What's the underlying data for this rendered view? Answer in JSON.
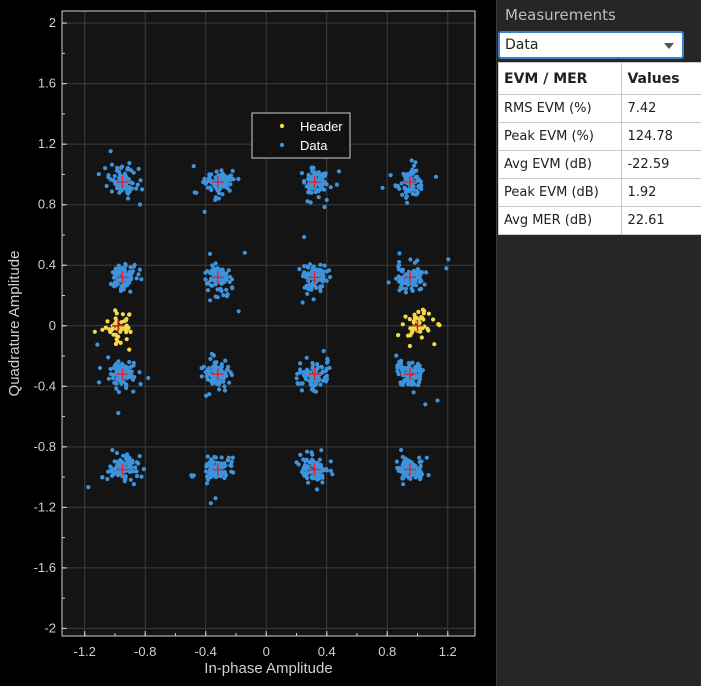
{
  "chart_data": {
    "type": "scatter",
    "title": "",
    "xlabel": "In-phase Amplitude",
    "ylabel": "Quadrature Amplitude",
    "xlim": [
      -1.35,
      1.38
    ],
    "ylim": [
      -2.05,
      2.08
    ],
    "xticks": [
      "-1.2",
      "-0.8",
      "-0.4",
      "0",
      "0.4",
      "0.8",
      "1.2"
    ],
    "xtick_values": [
      -1.2,
      -0.8,
      -0.4,
      0,
      0.4,
      0.8,
      1.2
    ],
    "yticks": [
      "2",
      "1.6",
      "1.2",
      "0.8",
      "0.4",
      "0",
      "-0.4",
      "-0.8",
      "-1.2",
      "-1.6",
      "-2"
    ],
    "ytick_values": [
      2,
      1.6,
      1.2,
      0.8,
      0.4,
      0,
      -0.4,
      -0.8,
      -1.2,
      -1.6,
      -2
    ],
    "grid": true,
    "legend_position": "center-top",
    "series": [
      {
        "name": "Header",
        "color": "#f5d94a",
        "clusters": [
          {
            "x": -0.98,
            "y": 0.0,
            "spread": 0.05
          },
          {
            "x": 1.0,
            "y": 0.0,
            "spread": 0.055
          }
        ],
        "points_per_cluster": 45
      },
      {
        "name": "Data",
        "color": "#3d93dc",
        "clusters": [
          {
            "x": -0.95,
            "y": 0.95
          },
          {
            "x": -0.32,
            "y": 0.95
          },
          {
            "x": 0.32,
            "y": 0.95
          },
          {
            "x": 0.95,
            "y": 0.95
          },
          {
            "x": -0.95,
            "y": 0.32
          },
          {
            "x": -0.32,
            "y": 0.32
          },
          {
            "x": 0.32,
            "y": 0.32
          },
          {
            "x": 0.95,
            "y": 0.32
          },
          {
            "x": -0.95,
            "y": -0.32
          },
          {
            "x": -0.32,
            "y": -0.32
          },
          {
            "x": 0.32,
            "y": -0.32
          },
          {
            "x": 0.95,
            "y": -0.32
          },
          {
            "x": -0.95,
            "y": -0.95
          },
          {
            "x": -0.32,
            "y": -0.95
          },
          {
            "x": 0.32,
            "y": -0.95
          },
          {
            "x": 0.95,
            "y": -0.95
          }
        ],
        "points_per_cluster": 90,
        "spread": 0.045
      }
    ],
    "reference_marker_color": "#e8202a",
    "reference_points": [
      {
        "x": -0.95,
        "y": 0.95
      },
      {
        "x": -0.32,
        "y": 0.95
      },
      {
        "x": 0.32,
        "y": 0.95
      },
      {
        "x": 0.95,
        "y": 0.95
      },
      {
        "x": -0.95,
        "y": 0.32
      },
      {
        "x": -0.32,
        "y": 0.32
      },
      {
        "x": 0.32,
        "y": 0.32
      },
      {
        "x": 0.95,
        "y": 0.32
      },
      {
        "x": -0.98,
        "y": 0.0
      },
      {
        "x": 1.0,
        "y": 0.0
      },
      {
        "x": -0.95,
        "y": -0.32
      },
      {
        "x": -0.32,
        "y": -0.32
      },
      {
        "x": 0.32,
        "y": -0.32
      },
      {
        "x": 0.95,
        "y": -0.32
      },
      {
        "x": -0.95,
        "y": -0.95
      },
      {
        "x": -0.32,
        "y": -0.95
      },
      {
        "x": 0.32,
        "y": -0.95
      },
      {
        "x": 0.95,
        "y": -0.95
      }
    ]
  },
  "panel": {
    "title": "Measurements",
    "dropdown_value": "Data",
    "table": {
      "headers": [
        "EVM / MER",
        "Values"
      ],
      "rows": [
        [
          "RMS EVM (%)",
          "7.42"
        ],
        [
          "Peak EVM (%)",
          "124.78"
        ],
        [
          "Avg EVM (dB)",
          "-22.59"
        ],
        [
          "Peak EVM (dB)",
          "1.92"
        ],
        [
          "Avg MER (dB)",
          "22.61"
        ]
      ]
    }
  },
  "colors": {
    "axes_bg": "#141414",
    "grid": "#3c3c3c",
    "axis": "#cfcfcf",
    "panel_bg": "#262626"
  }
}
